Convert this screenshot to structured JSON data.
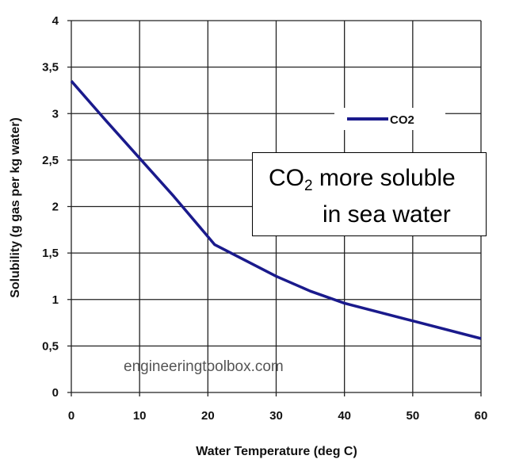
{
  "chart_data": {
    "type": "line",
    "xlabel": "Water Temperature (deg C)",
    "ylabel": "Solubility (g gas per kg water)",
    "xlim": [
      0,
      60
    ],
    "ylim": [
      0,
      4
    ],
    "x_ticks": [
      "0",
      "10",
      "20",
      "30",
      "40",
      "50",
      "60"
    ],
    "y_ticks": [
      "0",
      "0,5",
      "1",
      "1,5",
      "2",
      "2,5",
      "3",
      "3,5",
      "4"
    ],
    "grid": true,
    "legend_placement": "top-right",
    "series": [
      {
        "name": "CO2",
        "color": "#1a1a8c",
        "x": [
          0,
          5,
          10,
          15,
          21,
          30,
          35,
          40,
          50,
          60
        ],
        "y": [
          3.35,
          2.93,
          2.52,
          2.11,
          1.59,
          1.25,
          1.09,
          0.96,
          0.77,
          0.58
        ]
      }
    ],
    "annotation": {
      "prefix": "CO",
      "subscript": "2",
      "line1_rest": " more soluble",
      "line2": "in sea water"
    },
    "watermark": "engineeringtoolbox.com"
  }
}
